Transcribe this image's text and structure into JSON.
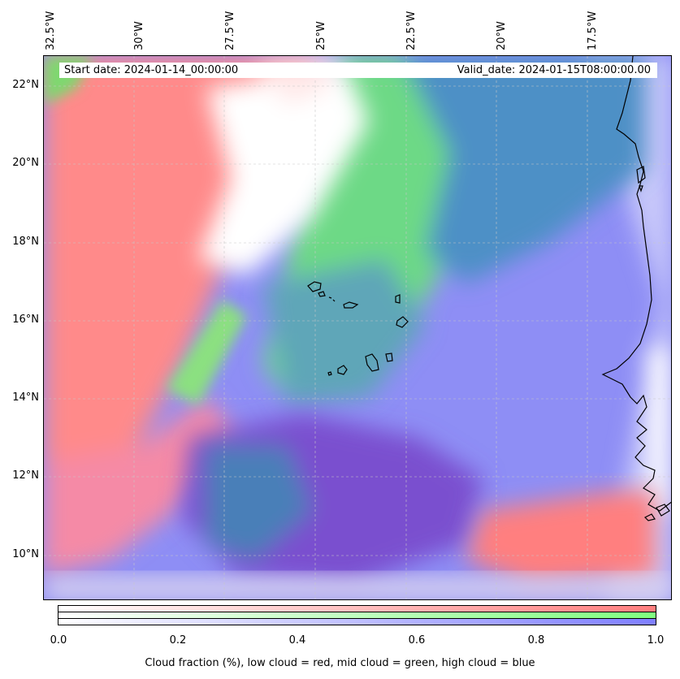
{
  "start_date": "Start date: 2024-01-14_00:00:00",
  "valid_date": "Valid_date: 2024-01-15T08:00:00.00",
  "lon_labels": [
    "32.5°W",
    "30°W",
    "27.5°W",
    "25°W",
    "22.5°W",
    "20°W",
    "17.5°W"
  ],
  "lat_labels": [
    "22°N",
    "20°N",
    "18°N",
    "16°N",
    "14°N",
    "12°N",
    "10°N"
  ],
  "colorbar": {
    "ticks": [
      "0.0",
      "0.2",
      "0.4",
      "0.6",
      "0.8",
      "1.0"
    ],
    "label": "Cloud fraction (%), low cloud = red, mid cloud = green, high cloud = blue",
    "colors": {
      "low": "#ff7f7f",
      "mid": "#7fff7f",
      "high": "#7f7fff"
    }
  },
  "map_colors": {
    "coastline": "#000000",
    "grid": "#cccccc"
  }
}
